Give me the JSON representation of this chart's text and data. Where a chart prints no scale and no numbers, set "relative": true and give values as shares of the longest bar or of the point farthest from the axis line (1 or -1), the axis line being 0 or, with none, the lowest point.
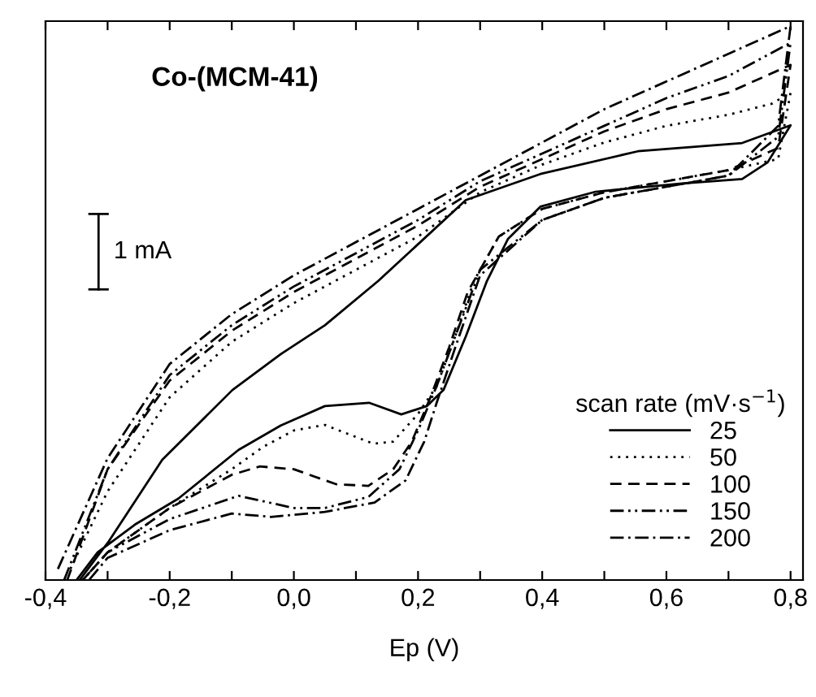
{
  "chart_data": {
    "type": "line",
    "title": "Co-(MCM-41)",
    "xlabel": "Ep (V)",
    "legend_title": "scan rate (mV·s$^{−1}$)",
    "annotations": [
      "1 mA"
    ],
    "relative": true,
    "legend": "bottom right",
    "grid": false,
    "marker": "none",
    "tick_labels": "x",
    "xlim": [
      -0.4,
      0.82
    ],
    "xticks": [
      {
        "value": -0.4,
        "label": "-0,4"
      },
      {
        "value": -0.3,
        "label": null
      },
      {
        "value": -0.2,
        "label": "-0,2"
      },
      {
        "value": -0.1,
        "label": null
      },
      {
        "value": 0.0,
        "label": "0,0"
      },
      {
        "value": 0.1,
        "label": null
      },
      {
        "value": 0.2,
        "label": "0,2"
      },
      {
        "value": 0.3,
        "label": null
      },
      {
        "value": 0.4,
        "label": "0,4"
      },
      {
        "value": 0.5,
        "label": null
      },
      {
        "value": 0.6,
        "label": "0,6"
      },
      {
        "value": 0.7,
        "label": null
      },
      {
        "value": 0.8,
        "label": "0,8"
      }
    ],
    "series": [
      {
        "name": "25",
        "color": "#000000",
        "line_style": "solid",
        "x": [
          -0.345,
          -0.298,
          -0.212,
          -0.099,
          -0.021,
          0.05,
          0.136,
          0.277,
          0.397,
          0.554,
          0.722,
          0.8,
          0.763,
          0.722,
          0.625,
          0.486,
          0.397,
          0.345,
          0.311,
          0.277,
          0.241,
          0.214,
          0.173,
          0.121,
          0.05,
          -0.021,
          -0.089,
          -0.186,
          -0.256,
          -0.316,
          -0.35
        ],
        "values": [
          0,
          0.07,
          0.217,
          0.343,
          0.408,
          0.46,
          0.54,
          0.686,
          0.733,
          0.774,
          0.789,
          0.821,
          0.754,
          0.724,
          0.716,
          0.701,
          0.674,
          0.616,
          0.54,
          0.44,
          0.343,
          0.314,
          0.299,
          0.32,
          0.314,
          0.279,
          0.235,
          0.147,
          0.1,
          0.05,
          0
        ]
      },
      {
        "name": "50",
        "color": "#000000",
        "line_style": "dotted",
        "x": [
          -0.36,
          -0.3,
          -0.2,
          -0.1,
          0.0,
          0.1,
          0.2,
          0.3,
          0.4,
          0.5,
          0.6,
          0.7,
          0.77,
          0.8,
          0.78,
          0.7,
          0.6,
          0.5,
          0.4,
          0.33,
          0.29,
          0.26,
          0.23,
          0.2,
          0.16,
          0.128,
          0.05,
          0.0,
          -0.05,
          -0.1,
          -0.2,
          -0.3,
          -0.34
        ],
        "values": [
          0.02,
          0.16,
          0.33,
          0.43,
          0.5,
          0.56,
          0.62,
          0.7,
          0.75,
          0.79,
          0.82,
          0.84,
          0.86,
          0.88,
          0.76,
          0.74,
          0.72,
          0.7,
          0.67,
          0.62,
          0.54,
          0.44,
          0.35,
          0.3,
          0.25,
          0.246,
          0.28,
          0.27,
          0.24,
          0.2,
          0.13,
          0.05,
          0
        ]
      },
      {
        "name": "100",
        "color": "#000000",
        "line_style": "dashed",
        "x": [
          -0.365,
          -0.3,
          -0.2,
          -0.1,
          0.0,
          0.1,
          0.2,
          0.3,
          0.4,
          0.5,
          0.6,
          0.7,
          0.8,
          0.78,
          0.7,
          0.6,
          0.5,
          0.4,
          0.33,
          0.28,
          0.25,
          0.22,
          0.19,
          0.16,
          0.12,
          0.068,
          0.0,
          -0.055,
          -0.1,
          -0.2,
          -0.3,
          -0.34
        ],
        "values": [
          0,
          0.2,
          0.36,
          0.45,
          0.52,
          0.58,
          0.64,
          0.71,
          0.76,
          0.81,
          0.85,
          0.88,
          0.93,
          0.78,
          0.74,
          0.72,
          0.7,
          0.67,
          0.62,
          0.52,
          0.42,
          0.33,
          0.25,
          0.2,
          0.17,
          0.173,
          0.2,
          0.205,
          0.19,
          0.13,
          0.05,
          0
        ]
      },
      {
        "name": "150",
        "color": "#000000",
        "line_style": "dashdotdot",
        "x": [
          -0.37,
          -0.3,
          -0.2,
          -0.1,
          0.0,
          0.1,
          0.2,
          0.3,
          0.4,
          0.5,
          0.6,
          0.7,
          0.8,
          0.78,
          0.7,
          0.6,
          0.5,
          0.4,
          0.3,
          0.26,
          0.23,
          0.2,
          0.17,
          0.12,
          0.05,
          0.0,
          -0.089,
          -0.2,
          -0.3,
          -0.34
        ],
        "values": [
          0,
          0.2,
          0.37,
          0.46,
          0.53,
          0.59,
          0.65,
          0.72,
          0.77,
          0.82,
          0.87,
          0.91,
          0.97,
          0.8,
          0.73,
          0.71,
          0.69,
          0.65,
          0.56,
          0.44,
          0.35,
          0.27,
          0.2,
          0.15,
          0.13,
          0.13,
          0.152,
          0.11,
          0.05,
          0
        ]
      },
      {
        "name": "200",
        "color": "#000000",
        "line_style": "dashdot",
        "x": [
          -0.38,
          -0.3,
          -0.2,
          -0.1,
          0.0,
          0.1,
          0.2,
          0.3,
          0.4,
          0.5,
          0.6,
          0.7,
          0.8,
          0.78,
          0.7,
          0.6,
          0.5,
          0.4,
          0.3,
          0.26,
          0.23,
          0.21,
          0.18,
          0.13,
          0.05,
          -0.037,
          -0.1,
          -0.2,
          -0.3,
          -0.33
        ],
        "values": [
          0.02,
          0.22,
          0.39,
          0.48,
          0.55,
          0.61,
          0.67,
          0.73,
          0.79,
          0.85,
          0.9,
          0.95,
          1.0,
          0.82,
          0.73,
          0.71,
          0.69,
          0.65,
          0.55,
          0.42,
          0.32,
          0.25,
          0.18,
          0.14,
          0.123,
          0.114,
          0.12,
          0.09,
          0.04,
          0
        ]
      }
    ]
  }
}
